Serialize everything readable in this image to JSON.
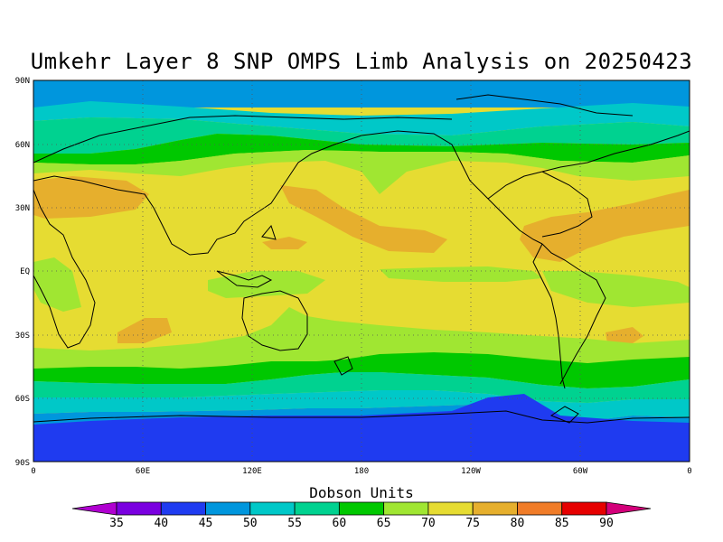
{
  "title": "Umkehr Layer 8 SNP OMPS Limb Analysis on 20250423",
  "map": {
    "lat_labels": [
      "90N",
      "60N",
      "30N",
      "EQ",
      "30S",
      "60S",
      "90S"
    ],
    "lon_labels": [
      "0",
      "60E",
      "120E",
      "180",
      "120W",
      "60W",
      "0"
    ],
    "grid": "dotted"
  },
  "colorbar": {
    "title": "Dobson Units",
    "ticks": [
      "35",
      "40",
      "45",
      "50",
      "55",
      "60",
      "65",
      "70",
      "75",
      "80",
      "85",
      "90"
    ],
    "colors": [
      "#b000d0",
      "#7a00e0",
      "#1f3bf0",
      "#0096dd",
      "#00c8c8",
      "#00d290",
      "#00c800",
      "#a0e632",
      "#e6dc32",
      "#e6af2d",
      "#f07c28",
      "#e60000",
      "#d3007a"
    ]
  }
}
